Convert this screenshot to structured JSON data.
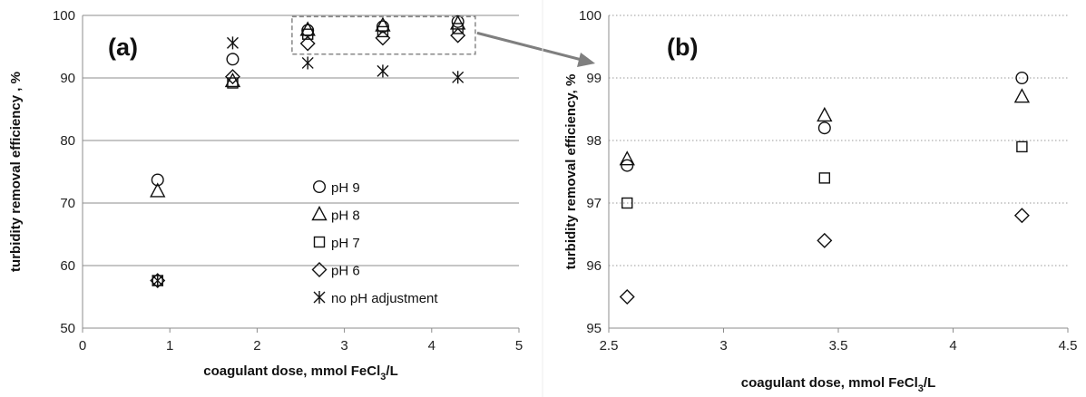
{
  "chart_data": [
    {
      "type": "scatter",
      "panel_label": "(a)",
      "xlabel": "coagulant dose, mmol FeCl",
      "xlabel_sub": "3",
      "xlabel_tail": "/L",
      "ylabel": "turbidity removal efficiency , %",
      "xlim": [
        0,
        5
      ],
      "ylim": [
        50,
        100
      ],
      "xticks": [
        "0",
        "1",
        "2",
        "3",
        "4",
        "5"
      ],
      "yticks": [
        "50",
        "60",
        "70",
        "80",
        "90",
        "100"
      ],
      "grid": "horizontal",
      "legend_position": "center-right",
      "series": [
        {
          "name": "pH 9",
          "marker": "circle",
          "x": [
            0.86,
            1.72,
            2.58,
            3.44,
            4.3
          ],
          "y": [
            73.7,
            93.0,
            97.6,
            98.2,
            99.0
          ]
        },
        {
          "name": "pH 8",
          "marker": "triangle",
          "x": [
            0.86,
            1.72,
            2.58,
            3.44,
            4.3
          ],
          "y": [
            71.9,
            89.5,
            97.7,
            98.4,
            98.7
          ]
        },
        {
          "name": "pH 7",
          "marker": "square",
          "x": [
            0.86,
            1.72,
            2.58,
            3.44,
            4.3
          ],
          "y": [
            57.6,
            89.2,
            97.0,
            97.4,
            97.9
          ]
        },
        {
          "name": "pH 6",
          "marker": "diamond",
          "x": [
            0.86,
            1.72,
            2.58,
            3.44,
            4.3
          ],
          "y": [
            57.6,
            90.2,
            95.5,
            96.4,
            96.8
          ]
        },
        {
          "name": "no pH adjustment",
          "marker": "asterisk",
          "x": [
            0.86,
            1.72,
            2.58,
            3.44,
            4.3
          ],
          "y": [
            57.6,
            95.6,
            92.4,
            91.1,
            90.1
          ]
        }
      ]
    },
    {
      "type": "scatter",
      "panel_label": "(b)",
      "xlabel": "coagulant dose, mmol FeCl",
      "xlabel_sub": "3",
      "xlabel_tail": "/L",
      "ylabel": "turbidity removal efficiency, %",
      "xlim": [
        2.5,
        4.5
      ],
      "ylim": [
        95,
        100
      ],
      "xticks": [
        "2.5",
        "3",
        "3.5",
        "4",
        "4.5"
      ],
      "yticks": [
        "95",
        "96",
        "97",
        "98",
        "99",
        "100"
      ],
      "grid": "horizontal-dotted",
      "series": [
        {
          "name": "pH 9",
          "marker": "circle",
          "x": [
            2.58,
            3.44,
            4.3
          ],
          "y": [
            97.6,
            98.2,
            99.0
          ]
        },
        {
          "name": "pH 8",
          "marker": "triangle",
          "x": [
            2.58,
            3.44,
            4.3
          ],
          "y": [
            97.7,
            98.4,
            98.7
          ]
        },
        {
          "name": "pH 7",
          "marker": "square",
          "x": [
            2.58,
            3.44,
            4.3
          ],
          "y": [
            97.0,
            97.4,
            97.9
          ]
        },
        {
          "name": "pH 6",
          "marker": "diamond",
          "x": [
            2.58,
            3.44,
            4.3
          ],
          "y": [
            95.5,
            96.4,
            96.8
          ]
        }
      ]
    }
  ]
}
